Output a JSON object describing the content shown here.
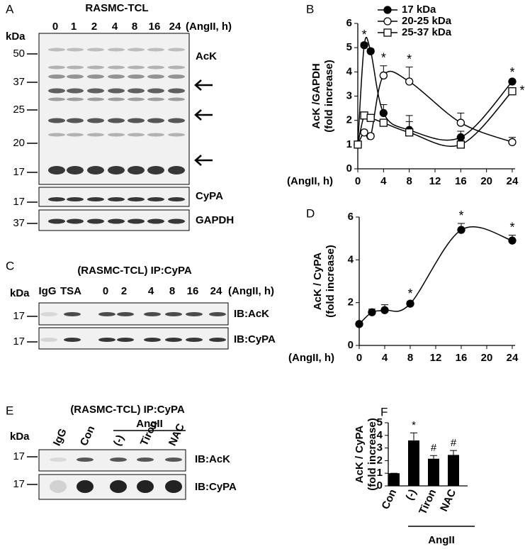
{
  "panel_labels": [
    "A",
    "B",
    "C",
    "D",
    "E",
    "F"
  ],
  "blots": [
    {
      "title": "RASMC-TCL",
      "kda": "kDa",
      "lanes": [
        "0",
        "1",
        "2",
        "4",
        "8",
        "16",
        "24"
      ],
      "lane_unit": "(AngII, h)",
      "strips": [
        {
          "label": "AcK",
          "markers": [
            50,
            37,
            25,
            20,
            17
          ]
        },
        {
          "label": "CyPA",
          "markers": [
            17
          ]
        },
        {
          "label": "GAPDH",
          "markers": [
            37
          ]
        }
      ]
    },
    {
      "title": "(RASMC-TCL) IP:CyPA",
      "kda": "kDa",
      "lanes": [
        "IgG",
        "TSA",
        "0",
        "2",
        "4",
        "8",
        "16",
        "24"
      ],
      "lane_unit": "(AngII, h)",
      "strips": [
        {
          "label": "IB:AcK",
          "markers": [
            17
          ]
        },
        {
          "label": "IB:CyPA",
          "markers": [
            17
          ]
        }
      ]
    },
    {
      "title": "(RASMC-TCL) IP:CyPA",
      "kda": "kDa",
      "group_label": "AngII",
      "lanes": [
        "IgG",
        "Con",
        "(-)",
        "Tiron",
        "NAC"
      ],
      "strips": [
        {
          "label": "IB:AcK",
          "markers": [
            17
          ]
        },
        {
          "label": "IB:CyPA",
          "markers": [
            17
          ]
        }
      ]
    }
  ],
  "chart_data": [
    {
      "type": "line",
      "x_label": "(AngII, h)",
      "y_label": [
        "AcK /GAPDH",
        "(fold increase)"
      ],
      "x": [
        0,
        1,
        2,
        4,
        8,
        16,
        24
      ],
      "xlim": [
        0,
        24
      ],
      "xticks": [
        0,
        4,
        8,
        12,
        16,
        20,
        24
      ],
      "ylim": [
        0,
        6
      ],
      "yticks": [
        0,
        1,
        2,
        3,
        4,
        5,
        6
      ],
      "legend": "top-right",
      "series": [
        {
          "name": "17 kDa",
          "color": "#000000",
          "marker": "circle-filled",
          "values": [
            1,
            5.1,
            4.85,
            2.3,
            1.6,
            1.3,
            3.6
          ],
          "errors": [
            0,
            0.1,
            0.1,
            0.35,
            0.35,
            0.25,
            0.05
          ],
          "marks": [
            null,
            "*",
            null,
            null,
            null,
            null,
            "*"
          ]
        },
        {
          "name": "20-25 kDa",
          "color": "#000000",
          "marker": "circle-open",
          "values": [
            1,
            1.5,
            1.35,
            3.85,
            3.6,
            1.9,
            1.1
          ],
          "errors": [
            0,
            0.1,
            0.1,
            0.4,
            0.6,
            0.4,
            0.2
          ],
          "marks": [
            null,
            null,
            null,
            "*",
            "*",
            null,
            null
          ]
        },
        {
          "name": "25-37 kDa",
          "color": "#000000",
          "marker": "square-open",
          "values": [
            1,
            2.2,
            2.1,
            1.9,
            1.5,
            1.0,
            3.2
          ],
          "errors": [
            0,
            0.1,
            0.1,
            0.1,
            0.7,
            0.1,
            0.1
          ],
          "marks": [
            null,
            null,
            null,
            null,
            null,
            null,
            "*"
          ]
        }
      ]
    },
    {
      "type": "line",
      "x_label": "(AngII, h)",
      "y_label": [
        "AcK / CyPA",
        "(fold increase)"
      ],
      "x": [
        0,
        2,
        4,
        8,
        16,
        24
      ],
      "xlim": [
        0,
        24
      ],
      "xticks": [
        0,
        4,
        8,
        12,
        16,
        20,
        24
      ],
      "ylim": [
        0,
        6
      ],
      "yticks": [
        0,
        2,
        4,
        6
      ],
      "color": "#000000",
      "marker": "circle-filled",
      "values": [
        1,
        1.55,
        1.65,
        1.95,
        5.4,
        4.9
      ],
      "errors": [
        0.1,
        0.15,
        0.25,
        0.1,
        0.3,
        0.25
      ],
      "marks": [
        null,
        null,
        null,
        "*",
        "*",
        "*"
      ]
    },
    {
      "type": "bar",
      "y_label": [
        "AcK / CyPA",
        "(fold increase)"
      ],
      "group_label": "AngII",
      "categories": [
        "Con",
        "(-)",
        "Tiron",
        "NAC"
      ],
      "values": [
        1,
        3.6,
        2.15,
        2.45
      ],
      "errors": [
        0,
        0.6,
        0.25,
        0.35
      ],
      "marks": [
        null,
        "*",
        "#",
        "#"
      ],
      "color": "#000000",
      "ylim": [
        0,
        5
      ],
      "yticks": [
        0,
        1,
        2,
        3,
        4,
        5
      ]
    }
  ]
}
